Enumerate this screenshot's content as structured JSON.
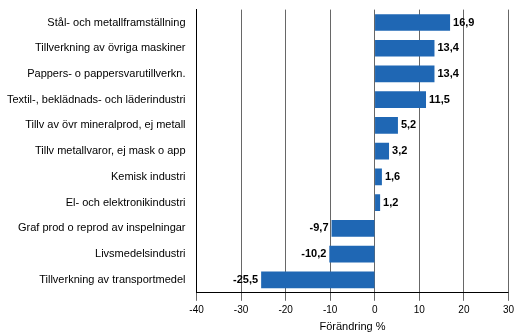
{
  "chart_data": {
    "type": "bar",
    "orientation": "horizontal",
    "x_label": "Förändring %",
    "categories": [
      "Stål- och metallframställning",
      "Tillverkning av övriga maskiner",
      "Pappers- o pappersvarutillverkn.",
      "Textil-, beklädnads- och läderindustri",
      "Tillv av övr mineralprod, ej metall",
      "Tillv metallvaror, ej mask o app",
      "Kemisk industri",
      "El- och elektronikindustri",
      "Graf prod o reprod av inspelningar",
      "Livsmedelsindustri",
      "Tillverkning av transportmedel"
    ],
    "values": [
      16.9,
      13.4,
      13.4,
      11.5,
      5.2,
      3.2,
      1.6,
      1.2,
      -9.7,
      -10.2,
      -25.5
    ],
    "value_labels": [
      "16,9",
      "13,4",
      "13,4",
      "11,5",
      "5,2",
      "3,2",
      "1,6",
      "1,2",
      "-9,7",
      "-10,2",
      "-25,5"
    ],
    "color": "#1f67b4",
    "xlim": [
      -40,
      30
    ],
    "xticks": [
      -40,
      -30,
      -20,
      -10,
      0,
      10,
      20,
      30
    ],
    "grid": true,
    "data_labels": true
  }
}
